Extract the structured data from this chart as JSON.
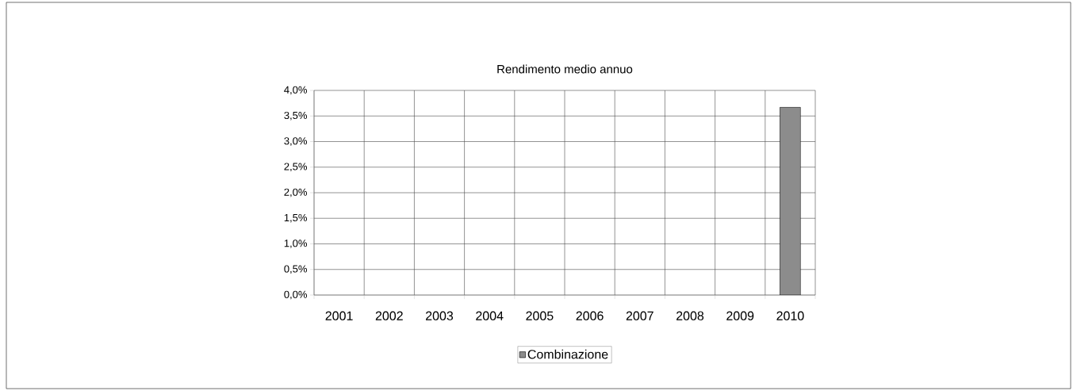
{
  "chart_data": {
    "type": "bar",
    "title": "Rendimento medio annuo",
    "categories": [
      "2001",
      "2002",
      "2003",
      "2004",
      "2005",
      "2006",
      "2007",
      "2008",
      "2009",
      "2010"
    ],
    "series": [
      {
        "name": "Combinazione",
        "color": "#8c8c8c",
        "values": [
          null,
          null,
          null,
          null,
          null,
          null,
          null,
          null,
          null,
          3.67
        ]
      }
    ],
    "ylim": [
      0,
      4
    ],
    "yticks": [
      {
        "value": 0,
        "label": "0,0%"
      },
      {
        "value": 0.5,
        "label": "0,5%"
      },
      {
        "value": 1,
        "label": "1,0%"
      },
      {
        "value": 1.5,
        "label": "1,5%"
      },
      {
        "value": 2,
        "label": "2,0%"
      },
      {
        "value": 2.5,
        "label": "2,5%"
      },
      {
        "value": 3,
        "label": "3,0%"
      },
      {
        "value": 3.5,
        "label": "3,5%"
      },
      {
        "value": 4,
        "label": "4,0%"
      }
    ],
    "grid": true,
    "legend": "bottom"
  }
}
